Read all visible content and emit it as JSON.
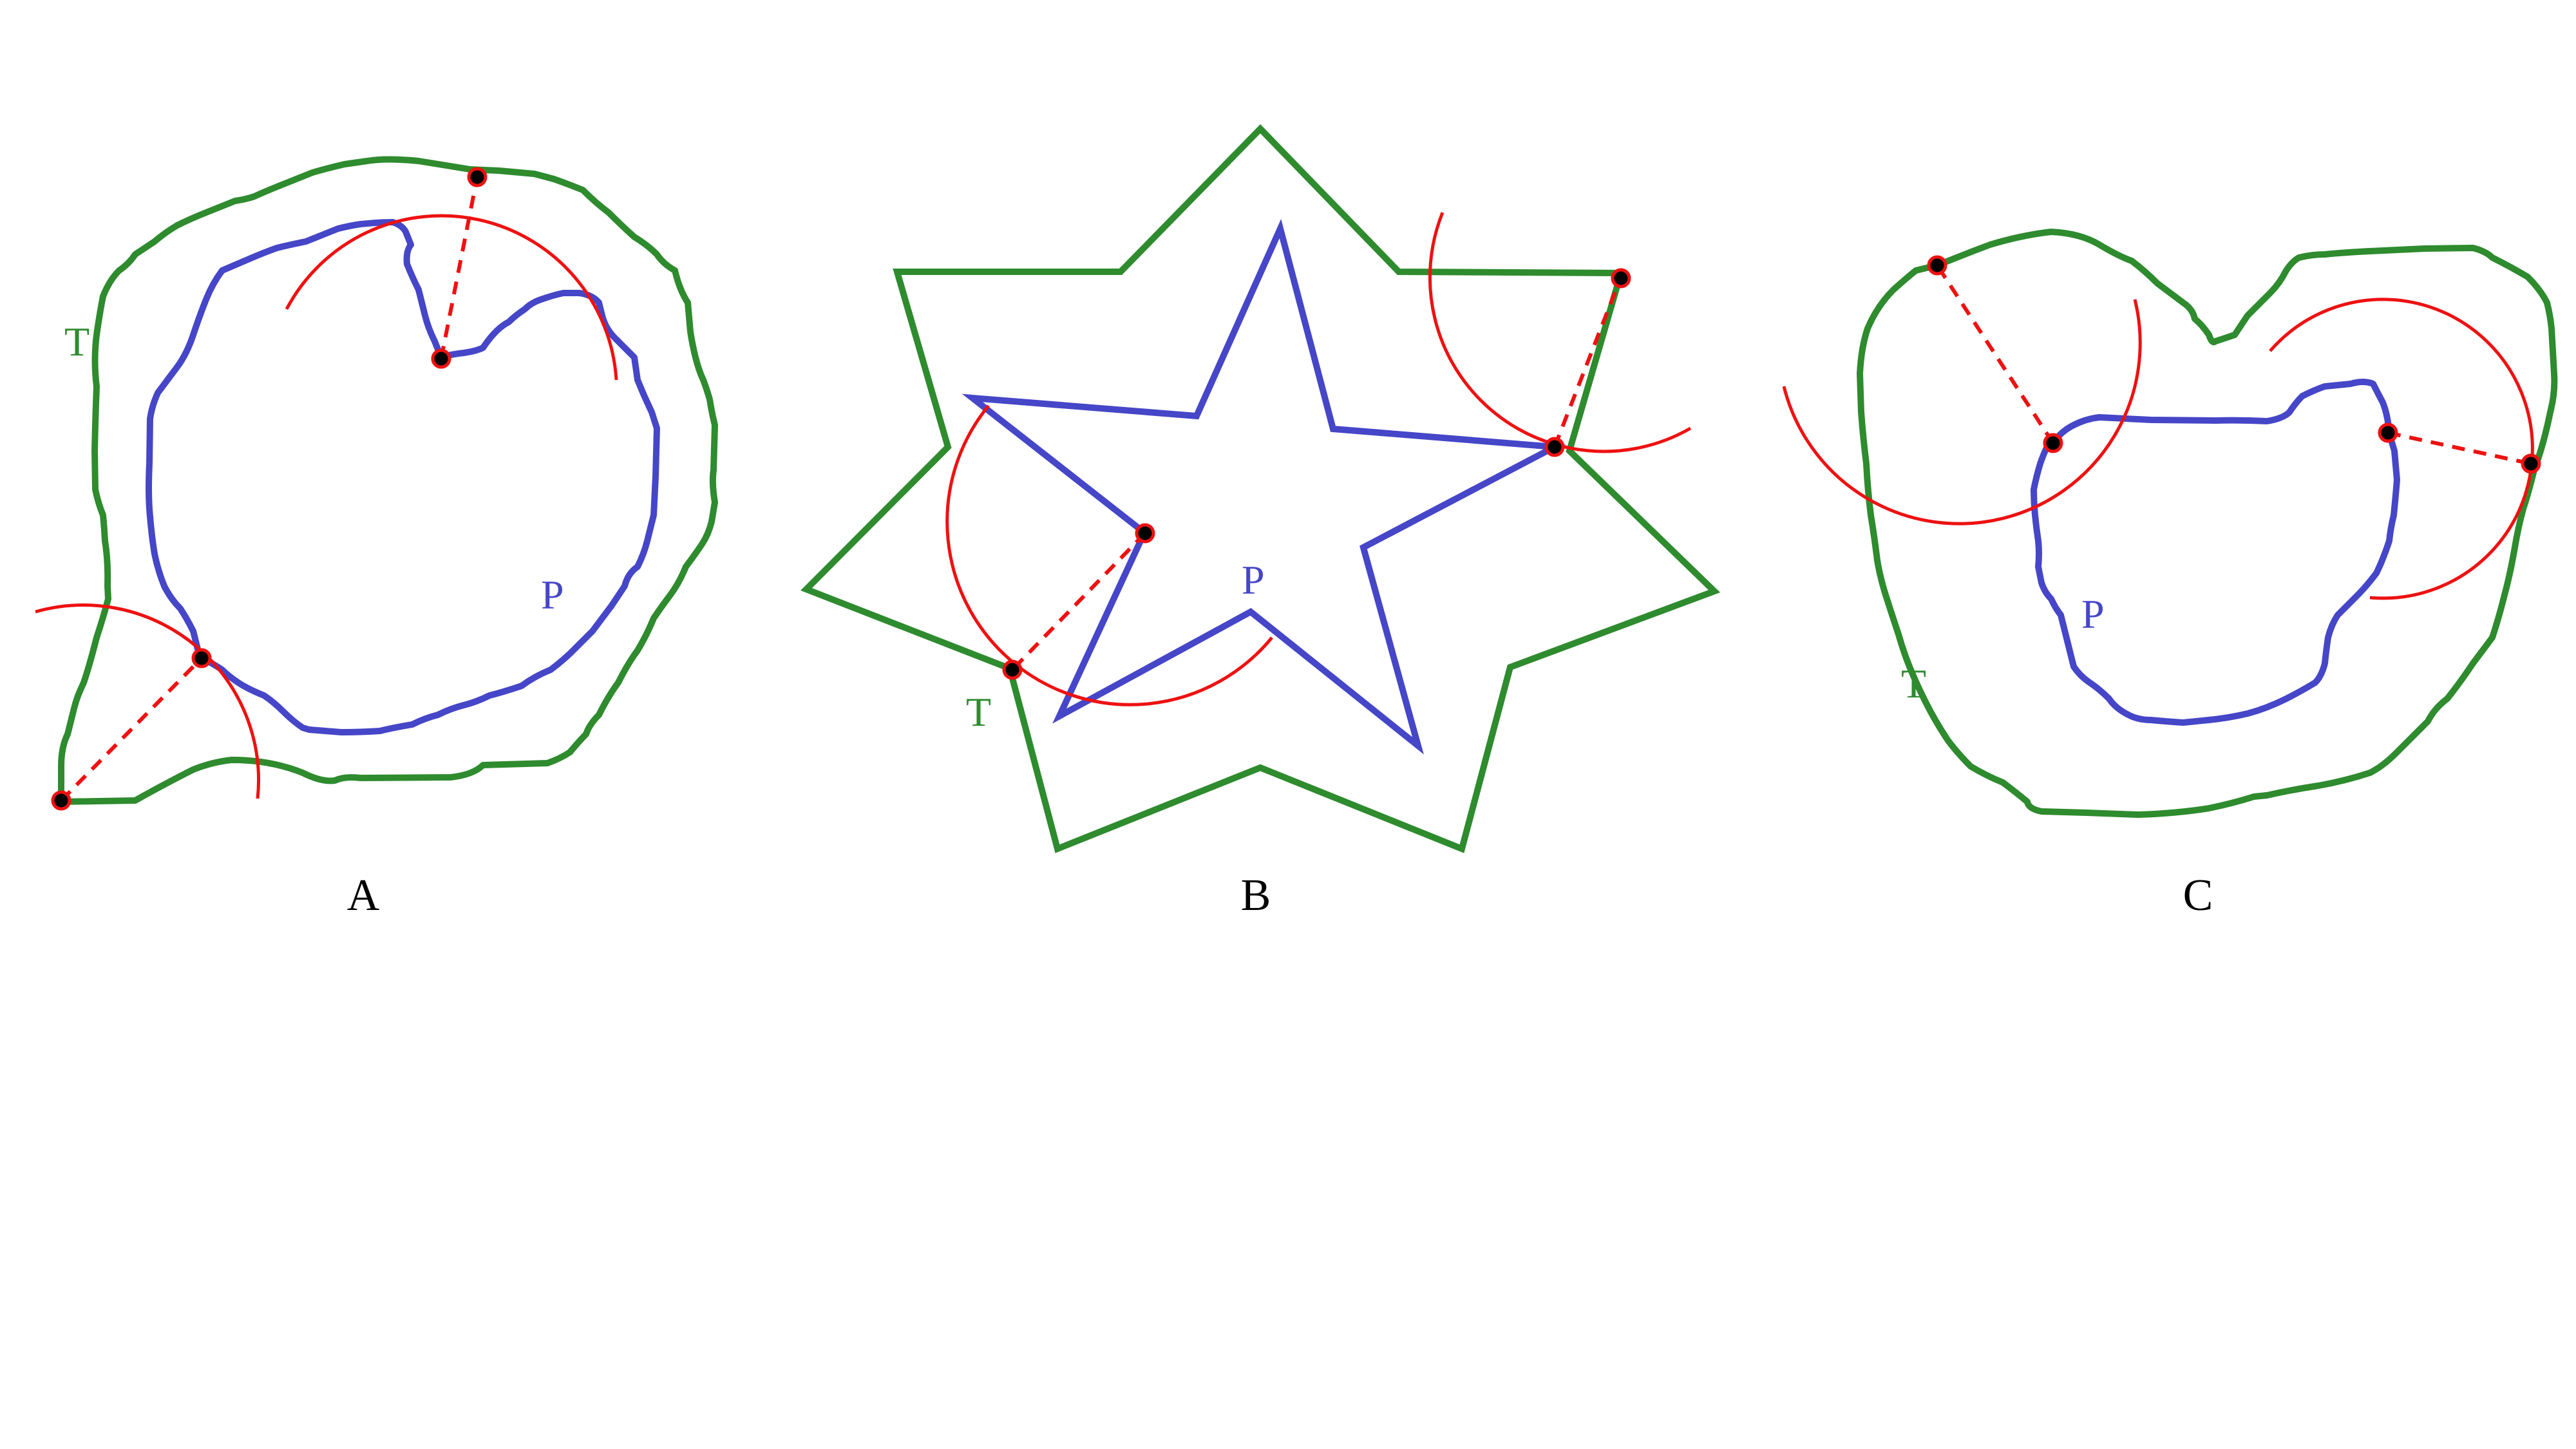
{
  "colors": {
    "target": "#2e8b2e",
    "pattern": "#4646c8",
    "arc": "#ee1111",
    "point_fill": "#000000",
    "point_stroke": "#ee1111"
  },
  "panels": [
    {
      "id": "A",
      "label": "A",
      "target_label": "T",
      "pattern_label": "P"
    },
    {
      "id": "B",
      "label": "B",
      "target_label": "T",
      "pattern_label": "P"
    },
    {
      "id": "C",
      "label": "C",
      "target_label": "T",
      "pattern_label": "P"
    }
  ]
}
